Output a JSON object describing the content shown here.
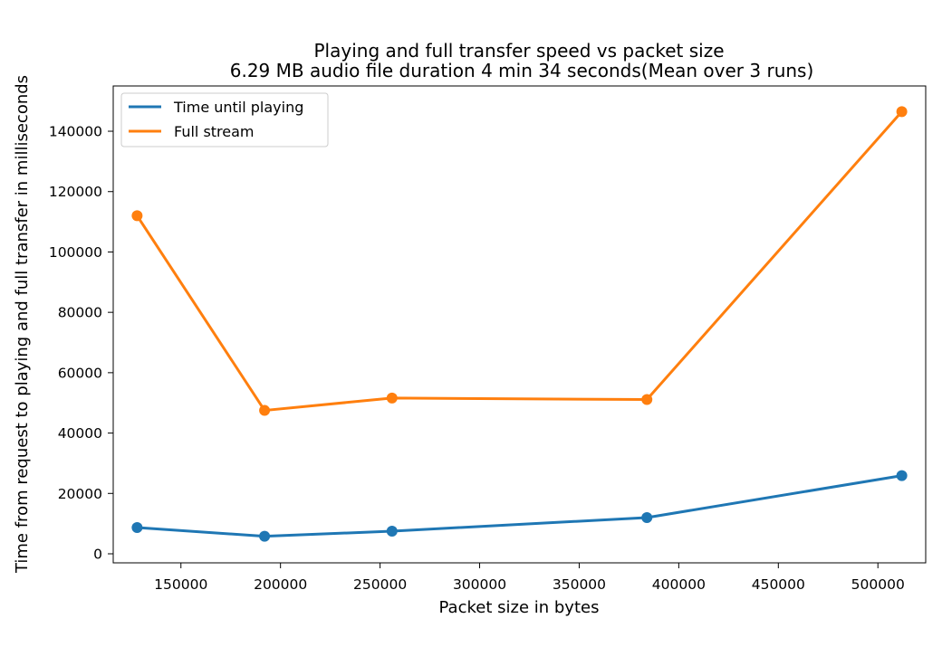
{
  "chart_data": {
    "type": "line",
    "title": "Playing and full transfer speed vs packet size",
    "subtitle": "6.29 MB audio file duration 4 min 34 seconds(Mean over 3 runs)",
    "xlabel": "Packet size in bytes",
    "ylabel": "Time from request to playing and full transfer in milliseconds",
    "xlim": [
      116000,
      524000
    ],
    "ylim": [
      -3000,
      155000
    ],
    "x_ticks": [
      150000,
      200000,
      250000,
      300000,
      350000,
      400000,
      450000,
      500000
    ],
    "y_ticks": [
      0,
      20000,
      40000,
      60000,
      80000,
      100000,
      120000,
      140000
    ],
    "grid": false,
    "legend_position": "upper-left",
    "x": [
      128000,
      192000,
      256000,
      384000,
      512000
    ],
    "series": [
      {
        "name": "Time until playing",
        "color": "#1f77b4",
        "values": [
          8700,
          5800,
          7500,
          12000,
          25900
        ]
      },
      {
        "name": "Full stream",
        "color": "#ff7f0e",
        "values": [
          112000,
          47500,
          51600,
          51100,
          146500
        ]
      }
    ]
  }
}
